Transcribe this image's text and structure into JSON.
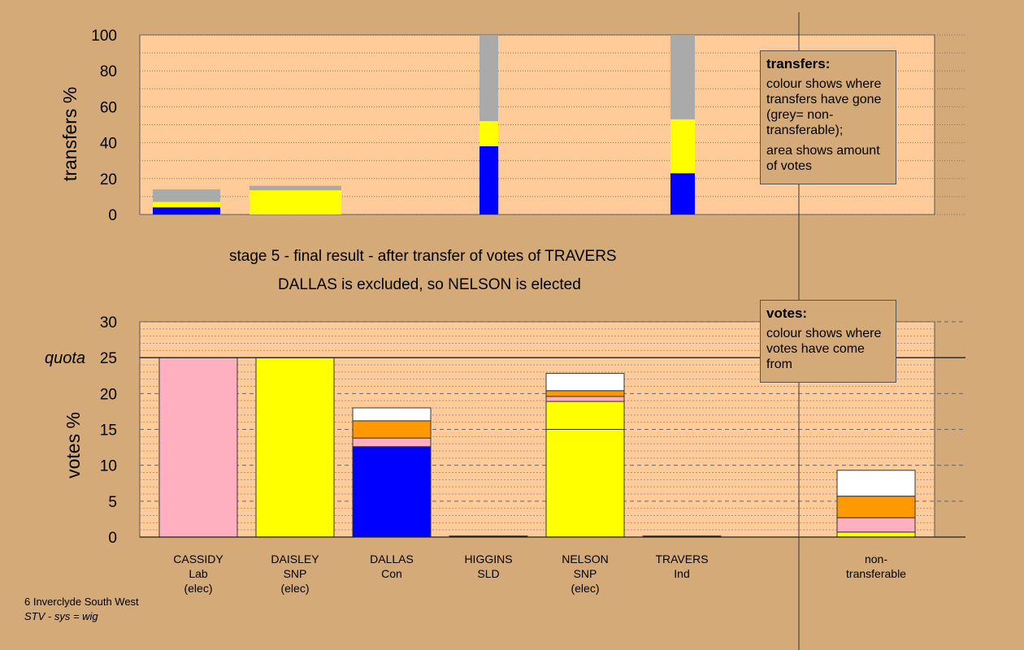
{
  "chart_data": [
    {
      "type": "bar",
      "ylabel": "transfers %",
      "ylim": [
        0,
        100
      ],
      "yticks": [
        "0",
        "20",
        "40",
        "60",
        "80",
        "100"
      ],
      "grid": true,
      "colors": {
        "blue": "#0000ff",
        "yellow": "#ffff00",
        "grey": "#aaaaaa"
      },
      "bars": [
        {
          "candidate": "CASSIDY",
          "segments": [
            {
              "color": "#0000ff",
              "from": 0,
              "to": 4
            },
            {
              "color": "#ffff00",
              "from": 4,
              "to": 7
            },
            {
              "color": "#aaaaaa",
              "from": 7,
              "to": 14
            }
          ]
        },
        {
          "candidate": "DAISLEY",
          "segments": [
            {
              "color": "#ffff00",
              "from": 0,
              "to": 13.5
            },
            {
              "color": "#aaaaaa",
              "from": 13.5,
              "to": 16
            }
          ]
        },
        {
          "candidate": "HIGGINS",
          "segments": [
            {
              "color": "#0000ff",
              "from": 0,
              "to": 38
            },
            {
              "color": "#ffff00",
              "from": 38,
              "to": 52
            },
            {
              "color": "#aaaaaa",
              "from": 52,
              "to": 100
            }
          ]
        },
        {
          "candidate": "TRAVERS",
          "segments": [
            {
              "color": "#0000ff",
              "from": 0,
              "to": 23
            },
            {
              "color": "#ffff00",
              "from": 23,
              "to": 53
            },
            {
              "color": "#aaaaaa",
              "from": 53,
              "to": 100
            }
          ]
        }
      ],
      "legend": {
        "title": "transfers:",
        "line1": "colour shows where transfers have gone (grey= non-transferable);",
        "line2": "area shows amount of votes"
      }
    },
    {
      "type": "bar",
      "ylabel": "votes %",
      "ylim": [
        0,
        30
      ],
      "yticks": [
        "0",
        "5",
        "10",
        "15",
        "20",
        "25",
        "30"
      ],
      "quota_label": "quota",
      "quota": 25,
      "grid": true,
      "categories": [
        {
          "name": "CASSIDY",
          "party": "Lab",
          "status": "(elec)"
        },
        {
          "name": "DAISLEY",
          "party": "SNP",
          "status": "(elec)"
        },
        {
          "name": "DALLAS",
          "party": "Con",
          "status": ""
        },
        {
          "name": "HIGGINS",
          "party": "SLD",
          "status": ""
        },
        {
          "name": "NELSON",
          "party": "SNP",
          "status": "(elec)"
        },
        {
          "name": "TRAVERS",
          "party": "Ind",
          "status": ""
        },
        {
          "name": "non-",
          "party": "transferable",
          "status": ""
        }
      ],
      "bars": [
        {
          "candidate": "CASSIDY",
          "segments": [
            {
              "color": "#ffb0c0",
              "from": 0,
              "to": 25
            }
          ]
        },
        {
          "candidate": "DAISLEY",
          "segments": [
            {
              "color": "#ffff00",
              "from": 0,
              "to": 25
            }
          ]
        },
        {
          "candidate": "DALLAS",
          "segments": [
            {
              "color": "#0000ff",
              "from": 0,
              "to": 12.6
            },
            {
              "color": "#ffb0c0",
              "from": 12.6,
              "to": 13.8
            },
            {
              "color": "#ff9900",
              "from": 13.8,
              "to": 16.2
            },
            {
              "color": "#ffffff",
              "from": 16.2,
              "to": 18
            }
          ]
        },
        {
          "candidate": "HIGGINS",
          "segments": [
            {
              "color": "#000000",
              "from": 0,
              "to": 0.15
            }
          ]
        },
        {
          "candidate": "NELSON",
          "segments": [
            {
              "color": "#ffff00",
              "from": 0,
              "to": 15
            },
            {
              "color": "#ffff00",
              "from": 15,
              "to": 18.9
            },
            {
              "color": "#ffb0c0",
              "from": 18.9,
              "to": 19.6
            },
            {
              "color": "#ff9900",
              "from": 19.6,
              "to": 20.4
            },
            {
              "color": "#ffffff",
              "from": 20.4,
              "to": 22.8
            }
          ]
        },
        {
          "candidate": "TRAVERS",
          "segments": [
            {
              "color": "#000000",
              "from": 0,
              "to": 0.15
            }
          ]
        },
        {
          "candidate": "non-transferable",
          "segments": [
            {
              "color": "#ffff00",
              "from": 0,
              "to": 0.7
            },
            {
              "color": "#ffb0c0",
              "from": 0.7,
              "to": 2.7
            },
            {
              "color": "#ff9900",
              "from": 2.7,
              "to": 5.7
            },
            {
              "color": "#ffffff",
              "from": 5.7,
              "to": 9.3
            }
          ]
        }
      ],
      "legend": {
        "title": "votes:",
        "line1": "colour shows where votes have come from"
      }
    }
  ],
  "captions": {
    "line1": "stage 5 - final result - after transfer of votes of TRAVERS",
    "line2": "DALLAS is excluded, so NELSON is elected"
  },
  "footer": {
    "line1": "6 Inverclyde South West",
    "line2": "STV - sys = wig"
  },
  "colors": {
    "background": "#d4aa78",
    "plot_bg": "#ffcc99"
  }
}
